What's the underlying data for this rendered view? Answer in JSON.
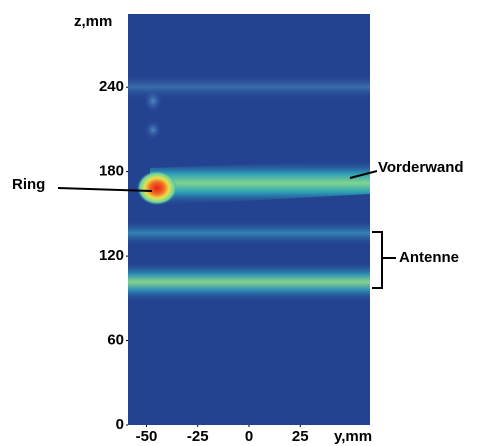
{
  "chart_data": {
    "type": "image",
    "xlabel": "y,mm",
    "ylabel": "z,mm",
    "xlim": [
      -59,
      59
    ],
    "ylim": [
      0,
      292
    ],
    "xticks": [
      -50,
      -25,
      0,
      25
    ],
    "yticks": [
      0,
      60,
      120,
      180,
      240
    ],
    "annotations": [
      {
        "text": "Ring"
      },
      {
        "text": "Vorderwand"
      },
      {
        "text": "Antenne"
      }
    ]
  }
}
